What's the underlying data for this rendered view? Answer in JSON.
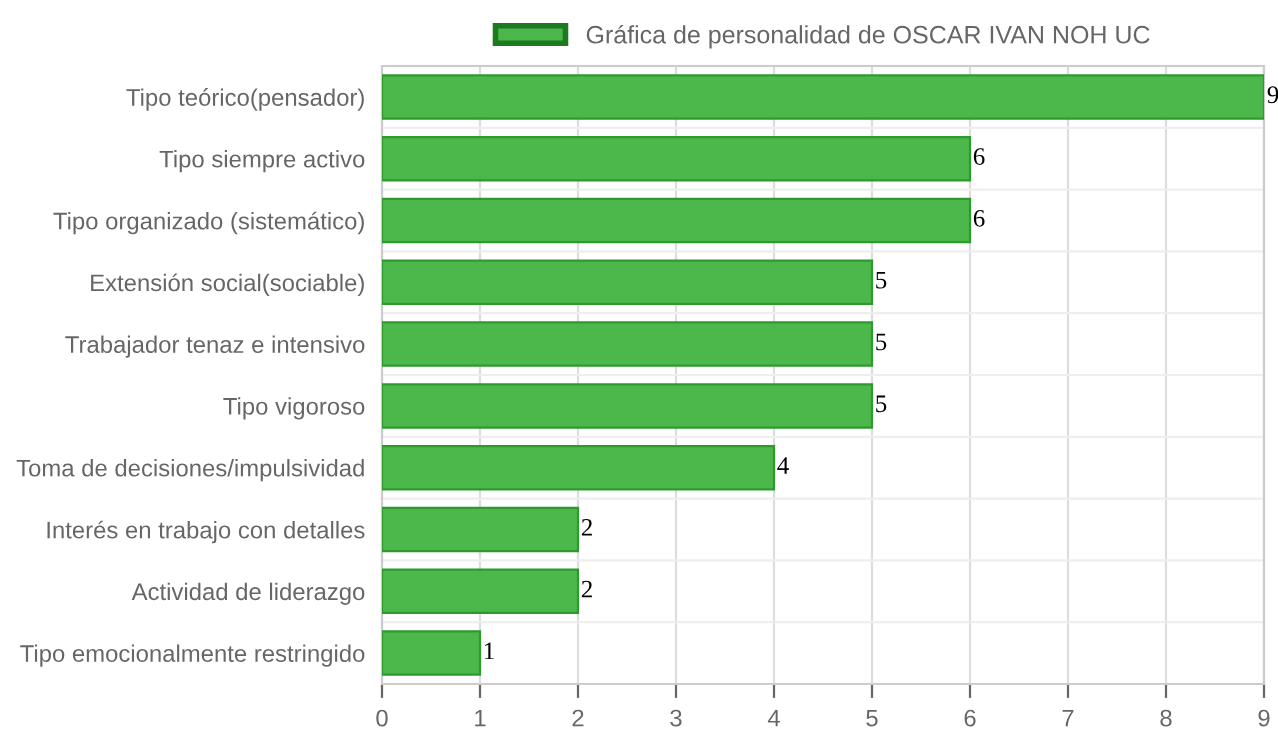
{
  "chart_data": {
    "type": "bar",
    "orientation": "horizontal",
    "categories": [
      "Tipo teórico(pensador)",
      "Tipo siempre activo",
      "Tipo organizado (sistemático)",
      "Extensión social(sociable)",
      "Trabajador tenaz e intensivo",
      "Tipo vigoroso",
      "Toma de decisiones/impulsividad",
      "Interés en trabajo con detalles",
      "Actividad de liderazgo",
      "Tipo emocionalmente restringido"
    ],
    "series": [
      {
        "name": "Gráfica de personalidad de OSCAR IVAN NOH UC",
        "color": "#4cb84c",
        "values": [
          9,
          6,
          6,
          5,
          5,
          5,
          4,
          2,
          2,
          1
        ]
      }
    ],
    "xlim": [
      0,
      9
    ],
    "xticks": [
      0,
      1,
      2,
      3,
      4,
      5,
      6,
      7,
      8,
      9
    ],
    "grid": true,
    "legend": "top",
    "data_labels": true
  }
}
